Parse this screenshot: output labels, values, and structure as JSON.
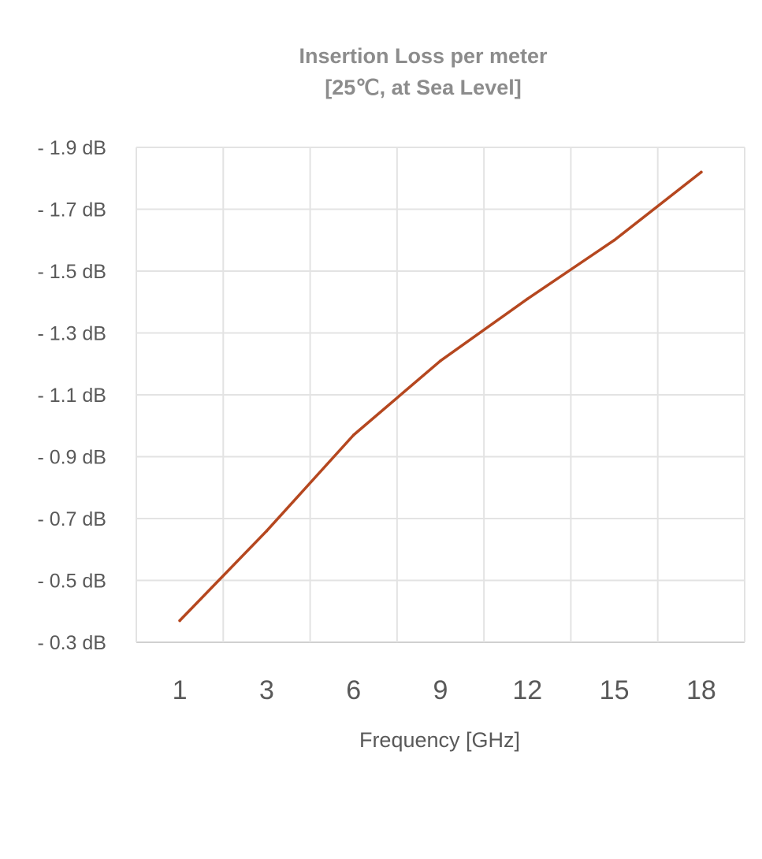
{
  "chart_data": {
    "type": "line",
    "title_lines": [
      "Insertion Loss per meter",
      "[25℃, at Sea Level]"
    ],
    "xlabel": "Frequency [GHz]",
    "ylabel": "",
    "categories": [
      "1",
      "3",
      "6",
      "9",
      "12",
      "15",
      "18"
    ],
    "y_tick_labels": [
      "- 1.9 dB",
      "- 1.7 dB",
      "- 1.5 dB",
      "- 1.3 dB",
      "- 1.1 dB",
      "- 0.9 dB",
      "- 0.7 dB",
      "- 0.5 dB",
      "- 0.3 dB"
    ],
    "ylim": [
      -0.3,
      -1.9
    ],
    "grid": true,
    "legend": "none",
    "series": [
      {
        "x": [
          "1",
          "3",
          "6",
          "9",
          "12",
          "15",
          "18"
        ],
        "values": [
          -0.37,
          -0.66,
          -0.97,
          -1.21,
          -1.41,
          -1.6,
          -1.82
        ],
        "color": "#b5471f"
      }
    ]
  }
}
